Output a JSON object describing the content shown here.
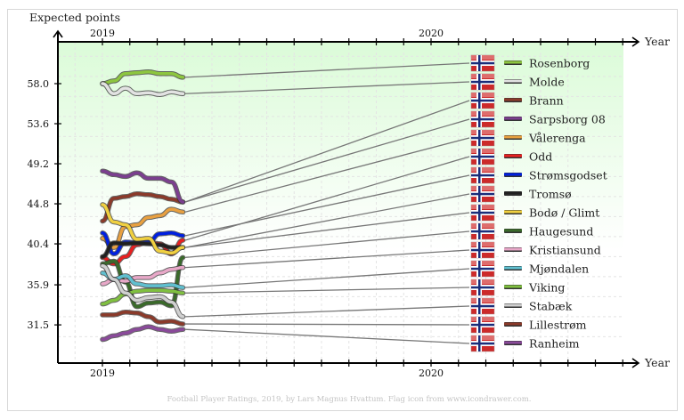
{
  "chart_data": {
    "type": "line",
    "ylabel": "Expected points",
    "xlabel": "Year",
    "x_ticks_top": [
      "2019",
      "2020"
    ],
    "x_ticks_bottom": [
      "2019",
      "2020"
    ],
    "y_ticks": [
      "58.0",
      "53.6",
      "49.2",
      "44.8",
      "40.4",
      "35.9",
      "31.5"
    ],
    "y_tick_values": [
      58.0,
      53.6,
      49.2,
      44.8,
      40.4,
      35.9,
      31.5
    ],
    "xlim": [
      2018.87,
      2020.6
    ],
    "ylim": [
      27.8,
      61.2
    ],
    "x": [
      2019.0,
      2019.035,
      2019.07,
      2019.105,
      2019.14,
      2019.175,
      2019.21,
      2019.245
    ],
    "grid": true,
    "legend_position": "right",
    "series": [
      {
        "name": "Rosenborg",
        "color": "#8dc63f",
        "values": [
          58.0,
          58.3,
          59.1,
          59.2,
          59.3,
          59.1,
          59.1,
          58.7
        ]
      },
      {
        "name": "Molde",
        "color": "#e2e2e2",
        "values": [
          58.0,
          56.9,
          57.5,
          56.9,
          57.0,
          56.8,
          57.1,
          56.9
        ]
      },
      {
        "name": "Brann",
        "color": "#8b3a2a",
        "values": [
          42.9,
          45.4,
          45.6,
          45.9,
          45.8,
          45.6,
          45.3,
          45.0
        ]
      },
      {
        "name": "Sarpsborg 08",
        "color": "#7b3f8f",
        "values": [
          48.4,
          48.0,
          47.8,
          48.2,
          47.6,
          47.6,
          47.2,
          45.0
        ]
      },
      {
        "name": "Vålerenga",
        "color": "#e8a040",
        "values": [
          41.0,
          40.0,
          42.3,
          42.5,
          43.3,
          43.5,
          44.2,
          43.9
        ]
      },
      {
        "name": "Odd",
        "color": "#e82020",
        "values": [
          38.9,
          38.2,
          39.0,
          40.3,
          40.6,
          40.4,
          39.3,
          40.8
        ]
      },
      {
        "name": "Strømsgodset",
        "color": "#0020e0",
        "values": [
          41.6,
          39.3,
          40.6,
          40.5,
          40.6,
          41.5,
          41.6,
          41.3
        ]
      },
      {
        "name": "Tromsø",
        "color": "#202020",
        "values": [
          39.0,
          40.5,
          40.4,
          40.5,
          40.4,
          40.3,
          40.0,
          40.0
        ]
      },
      {
        "name": "Bodø / Glimt",
        "color": "#f0d040",
        "values": [
          44.7,
          42.8,
          42.5,
          40.9,
          41.0,
          39.6,
          39.4,
          40.0
        ]
      },
      {
        "name": "Haugesund",
        "color": "#3a6a2a",
        "values": [
          38.2,
          38.5,
          36.2,
          33.5,
          33.9,
          34.0,
          33.6,
          38.9
        ]
      },
      {
        "name": "Kristiansund",
        "color": "#e8a8c8",
        "values": [
          36.0,
          36.5,
          36.3,
          36.7,
          36.7,
          37.2,
          37.6,
          37.8
        ]
      },
      {
        "name": "Mjøndalen",
        "color": "#60c0d0",
        "values": [
          37.2,
          36.5,
          36.9,
          36.0,
          35.8,
          35.8,
          35.9,
          35.6
        ]
      },
      {
        "name": "Viking",
        "color": "#80c040",
        "values": [
          33.8,
          34.2,
          34.9,
          35.2,
          35.3,
          35.3,
          35.2,
          35.0
        ]
      },
      {
        "name": "Stabæk",
        "color": "#d0d0d0",
        "values": [
          38.0,
          36.5,
          35.0,
          34.2,
          34.5,
          34.6,
          34.0,
          32.4
        ]
      },
      {
        "name": "Lillestrøm",
        "color": "#8b3a2a",
        "values": [
          32.6,
          32.6,
          32.9,
          32.8,
          32.4,
          31.8,
          31.9,
          31.6
        ]
      },
      {
        "name": "Ranheim",
        "color": "#8a4a9a",
        "values": [
          29.9,
          30.3,
          30.6,
          31.0,
          31.3,
          31.0,
          30.8,
          31.0
        ]
      }
    ],
    "footer": "Football Player Ratings, 2019, by Lars Magnus Hvattum. Flag icon from www.icondrawer.com."
  }
}
